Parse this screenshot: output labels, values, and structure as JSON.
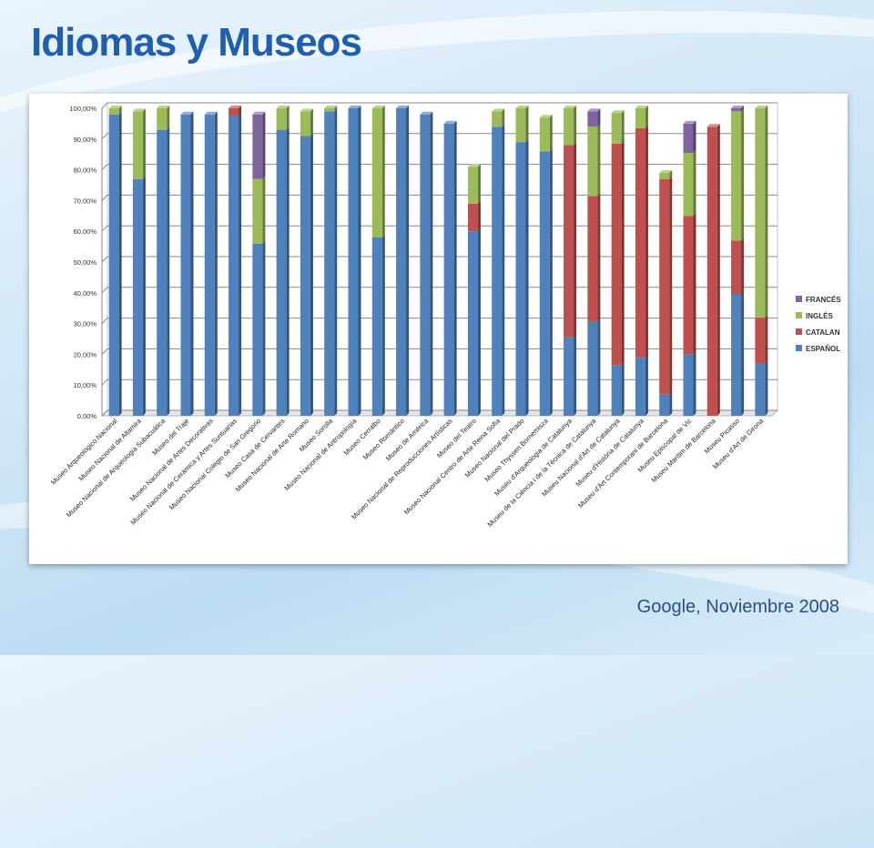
{
  "slide": {
    "title": "Idiomas y Museos",
    "source": "Google, Noviembre 2008"
  },
  "colors": {
    "ESPAÑOL": "#4f81bd",
    "CATALAN": "#c0504d",
    "INGLÉS": "#9bbb59",
    "FRANCÉS": "#8064a2"
  },
  "chart_data": {
    "type": "bar",
    "stacked": true,
    "categories": [
      "Museo Arqueológico Nacional",
      "Museo Nacional de Altamira",
      "Museo Nacional de Arqueología Subacuática",
      "Museo del Traje",
      "Museo Nacional de Artes Decorativas",
      "Museo Nacional de Cerámica y Artes Suntuarias",
      "Museo Nacional Colegio de San Gregorio",
      "Museo Casa de Cervantes",
      "Museo Nacional de Arte Romano",
      "Museo Sorolla",
      "Museo Nacional de Antropología",
      "Museo Cerralbo",
      "Museo Romántico",
      "Museo de América",
      "Museo Nacional de Reproducciones Artísticas",
      "Museo del Teatro",
      "Museo Nacional Centro de Arte Reina Sofía",
      "Museo Nacional del Prado",
      "Museo Thyssen Bornemisza",
      "Museu d'Arqueologia de Catalunya",
      "Museu de la Ciència i de la Tècnica de Catalunya",
      "Museu Nacional d'Art de Catalunya",
      "Museu d'Història de Catalunya",
      "Museu d'Art Contemporani de Barcelona",
      "Museu Episcopal de Vic",
      "Museu Marítim de Barcelona",
      "Museu Picasso",
      "Museu d'Art de Girona"
    ],
    "series": [
      {
        "name": "ESPAÑOL",
        "values": [
          98,
          77,
          93,
          98,
          98,
          97.5,
          56,
          93,
          91,
          99,
          100,
          58,
          100,
          98,
          95,
          60,
          94,
          89,
          86,
          25.5,
          30.5,
          16.5,
          19,
          7,
          20,
          0,
          39.5,
          17
        ]
      },
      {
        "name": "CATALAN",
        "values": [
          0,
          0,
          0,
          0,
          0,
          2.5,
          0,
          0,
          0,
          0,
          0,
          0,
          0,
          0,
          0,
          9,
          0,
          0,
          0,
          62.5,
          41,
          72,
          74.5,
          70,
          45,
          94,
          17.5,
          15
        ]
      },
      {
        "name": "INGLÉS",
        "values": [
          2,
          22,
          7,
          0,
          0,
          0,
          21,
          7,
          8,
          1,
          0,
          42,
          0,
          0,
          0,
          12,
          5,
          11,
          11,
          12,
          22.5,
          10,
          6.5,
          2,
          20.5,
          0,
          42,
          68
        ]
      },
      {
        "name": "FRANCÉS",
        "values": [
          0,
          0,
          0,
          0,
          0,
          0,
          21,
          0,
          0,
          0,
          0,
          0,
          0,
          0,
          0,
          0,
          0,
          0,
          0,
          0,
          5,
          0,
          0,
          0,
          9.5,
          0,
          1,
          0
        ]
      }
    ],
    "legend_order": [
      "FRANCÉS",
      "INGLÉS",
      "CATALAN",
      "ESPAÑOL"
    ],
    "legend_position": "right",
    "y_ticks": [
      "0,00%",
      "10,00%",
      "20,00%",
      "30,00%",
      "40,00%",
      "50,00%",
      "60,00%",
      "70,00%",
      "80,00%",
      "90,00%",
      "100,00%"
    ],
    "ylim": [
      0,
      100
    ],
    "grid": true,
    "xlabel": "",
    "ylabel": ""
  }
}
